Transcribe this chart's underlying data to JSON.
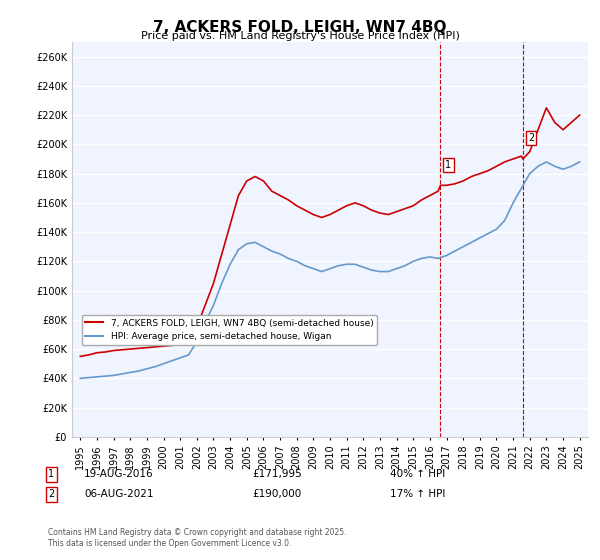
{
  "title": "7, ACKERS FOLD, LEIGH, WN7 4BQ",
  "subtitle": "Price paid vs. HM Land Registry's House Price Index (HPI)",
  "xlabel": "",
  "ylabel": "",
  "ylim": [
    0,
    270000
  ],
  "yticks": [
    0,
    20000,
    40000,
    60000,
    80000,
    100000,
    120000,
    140000,
    160000,
    180000,
    200000,
    220000,
    240000,
    260000
  ],
  "background_color": "#ffffff",
  "plot_bg_color": "#f0f4ff",
  "grid_color": "#ffffff",
  "red_color": "#cc0000",
  "blue_color": "#6699cc",
  "marker1_date": 2016.635,
  "marker2_date": 2021.59,
  "marker1_price": 171995,
  "marker2_price": 190000,
  "legend_label_red": "7, ACKERS FOLD, LEIGH, WN7 4BQ (semi-detached house)",
  "legend_label_blue": "HPI: Average price, semi-detached house, Wigan",
  "annotation1_label": "1",
  "annotation2_label": "2",
  "annotation1_text": "19-AUG-2016    £171,995    40% ↑ HPI",
  "annotation2_text": "06-AUG-2021    £190,000    17% ↑ HPI",
  "footer": "Contains HM Land Registry data © Crown copyright and database right 2025.\nThis data is licensed under the Open Government Licence v3.0.",
  "red_x": [
    1995.0,
    1995.5,
    1996.0,
    1996.5,
    1997.0,
    1997.5,
    1998.0,
    1998.5,
    1999.0,
    1999.5,
    2000.0,
    2000.5,
    2001.0,
    2001.5,
    2002.0,
    2002.5,
    2003.0,
    2003.5,
    2004.0,
    2004.5,
    2005.0,
    2005.5,
    2006.0,
    2006.5,
    2007.0,
    2007.5,
    2008.0,
    2008.5,
    2009.0,
    2009.5,
    2010.0,
    2010.5,
    2011.0,
    2011.5,
    2012.0,
    2012.5,
    2013.0,
    2013.5,
    2014.0,
    2014.5,
    2015.0,
    2015.5,
    2016.0,
    2016.5,
    2016.635,
    2017.0,
    2017.5,
    2018.0,
    2018.5,
    2019.0,
    2019.5,
    2020.0,
    2020.5,
    2021.0,
    2021.5,
    2021.59,
    2022.0,
    2022.5,
    2023.0,
    2023.5,
    2024.0,
    2024.5,
    2025.0
  ],
  "red_y": [
    55000,
    56000,
    57500,
    58000,
    59000,
    59500,
    60000,
    60500,
    61000,
    61500,
    62000,
    62500,
    63000,
    65000,
    75000,
    90000,
    105000,
    125000,
    145000,
    165000,
    175000,
    178000,
    175000,
    168000,
    165000,
    162000,
    158000,
    155000,
    152000,
    150000,
    152000,
    155000,
    158000,
    160000,
    158000,
    155000,
    153000,
    152000,
    154000,
    156000,
    158000,
    162000,
    165000,
    168000,
    171995,
    171995,
    173000,
    175000,
    178000,
    180000,
    182000,
    185000,
    188000,
    190000,
    192000,
    190000,
    195000,
    210000,
    225000,
    215000,
    210000,
    215000,
    220000
  ],
  "blue_x": [
    1995.0,
    1995.5,
    1996.0,
    1996.5,
    1997.0,
    1997.5,
    1998.0,
    1998.5,
    1999.0,
    1999.5,
    2000.0,
    2000.5,
    2001.0,
    2001.5,
    2002.0,
    2002.5,
    2003.0,
    2003.5,
    2004.0,
    2004.5,
    2005.0,
    2005.5,
    2006.0,
    2006.5,
    2007.0,
    2007.5,
    2008.0,
    2008.5,
    2009.0,
    2009.5,
    2010.0,
    2010.5,
    2011.0,
    2011.5,
    2012.0,
    2012.5,
    2013.0,
    2013.5,
    2014.0,
    2014.5,
    2015.0,
    2015.5,
    2016.0,
    2016.5,
    2017.0,
    2017.5,
    2018.0,
    2018.5,
    2019.0,
    2019.5,
    2020.0,
    2020.5,
    2021.0,
    2021.5,
    2022.0,
    2022.5,
    2023.0,
    2023.5,
    2024.0,
    2024.5,
    2025.0
  ],
  "blue_y": [
    40000,
    40500,
    41000,
    41500,
    42000,
    43000,
    44000,
    45000,
    46500,
    48000,
    50000,
    52000,
    54000,
    56000,
    65000,
    78000,
    90000,
    105000,
    118000,
    128000,
    132000,
    133000,
    130000,
    127000,
    125000,
    122000,
    120000,
    117000,
    115000,
    113000,
    115000,
    117000,
    118000,
    118000,
    116000,
    114000,
    113000,
    113000,
    115000,
    117000,
    120000,
    122000,
    123000,
    122000,
    124000,
    127000,
    130000,
    133000,
    136000,
    139000,
    142000,
    148000,
    160000,
    170000,
    180000,
    185000,
    188000,
    185000,
    183000,
    185000,
    188000
  ]
}
